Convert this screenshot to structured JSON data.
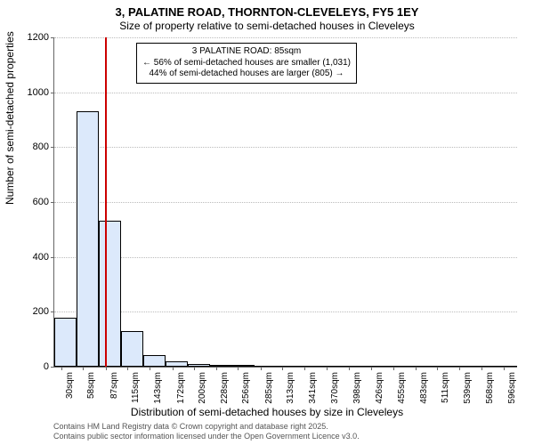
{
  "title_main": "3, PALATINE ROAD, THORNTON-CLEVELEYS, FY5 1EY",
  "title_sub": "Size of property relative to semi-detached houses in Cleveleys",
  "y_axis_label": "Number of semi-detached properties",
  "x_axis_label": "Distribution of semi-detached houses by size in Cleveleys",
  "chart": {
    "type": "histogram",
    "ylim": [
      0,
      1200
    ],
    "ytick_step": 200,
    "yticks": [
      0,
      200,
      400,
      600,
      800,
      1000,
      1200
    ],
    "xlim": [
      20,
      612
    ],
    "xticks": [
      30,
      58,
      87,
      115,
      143,
      172,
      200,
      228,
      256,
      285,
      313,
      341,
      370,
      398,
      426,
      455,
      483,
      511,
      539,
      568,
      596
    ],
    "xtick_suffix": "sqm",
    "bar_color": "#dce9fb",
    "bar_border": "#000000",
    "grid_color": "#bbbbbb",
    "background_color": "#ffffff",
    "bars": [
      {
        "x0": 20,
        "x1": 48.4,
        "y": 178
      },
      {
        "x0": 48.4,
        "x1": 76.8,
        "y": 930
      },
      {
        "x0": 76.8,
        "x1": 105.2,
        "y": 532
      },
      {
        "x0": 105.2,
        "x1": 133.6,
        "y": 130
      },
      {
        "x0": 133.6,
        "x1": 162,
        "y": 42
      },
      {
        "x0": 162,
        "x1": 190.4,
        "y": 18
      },
      {
        "x0": 190.4,
        "x1": 218.8,
        "y": 10
      },
      {
        "x0": 218.8,
        "x1": 247.2,
        "y": 6
      },
      {
        "x0": 247.2,
        "x1": 275.6,
        "y": 2
      },
      {
        "x0": 275.6,
        "x1": 304,
        "y": 0
      },
      {
        "x0": 304,
        "x1": 332.4,
        "y": 0
      },
      {
        "x0": 332.4,
        "x1": 360.8,
        "y": 0
      },
      {
        "x0": 360.8,
        "x1": 389.2,
        "y": 0
      },
      {
        "x0": 389.2,
        "x1": 417.6,
        "y": 0
      },
      {
        "x0": 417.6,
        "x1": 446,
        "y": 0
      },
      {
        "x0": 446,
        "x1": 474.4,
        "y": 0
      },
      {
        "x0": 474.4,
        "x1": 502.8,
        "y": 0
      },
      {
        "x0": 502.8,
        "x1": 531.2,
        "y": 0
      },
      {
        "x0": 531.2,
        "x1": 559.6,
        "y": 0
      },
      {
        "x0": 559.6,
        "x1": 588,
        "y": 0
      },
      {
        "x0": 588,
        "x1": 612,
        "y": 0
      }
    ],
    "reference_line": {
      "x": 85,
      "color": "#cc0000"
    },
    "info_box": {
      "line1": "3 PALATINE ROAD: 85sqm",
      "line2": "← 56% of semi-detached houses are smaller (1,031)",
      "line3": "44% of semi-detached houses are larger (805) →",
      "border": "#000000",
      "bg": "#ffffff",
      "fontsize": 10
    }
  },
  "attribution_line1": "Contains HM Land Registry data © Crown copyright and database right 2025.",
  "attribution_line2": "Contains public sector information licensed under the Open Government Licence v3.0."
}
